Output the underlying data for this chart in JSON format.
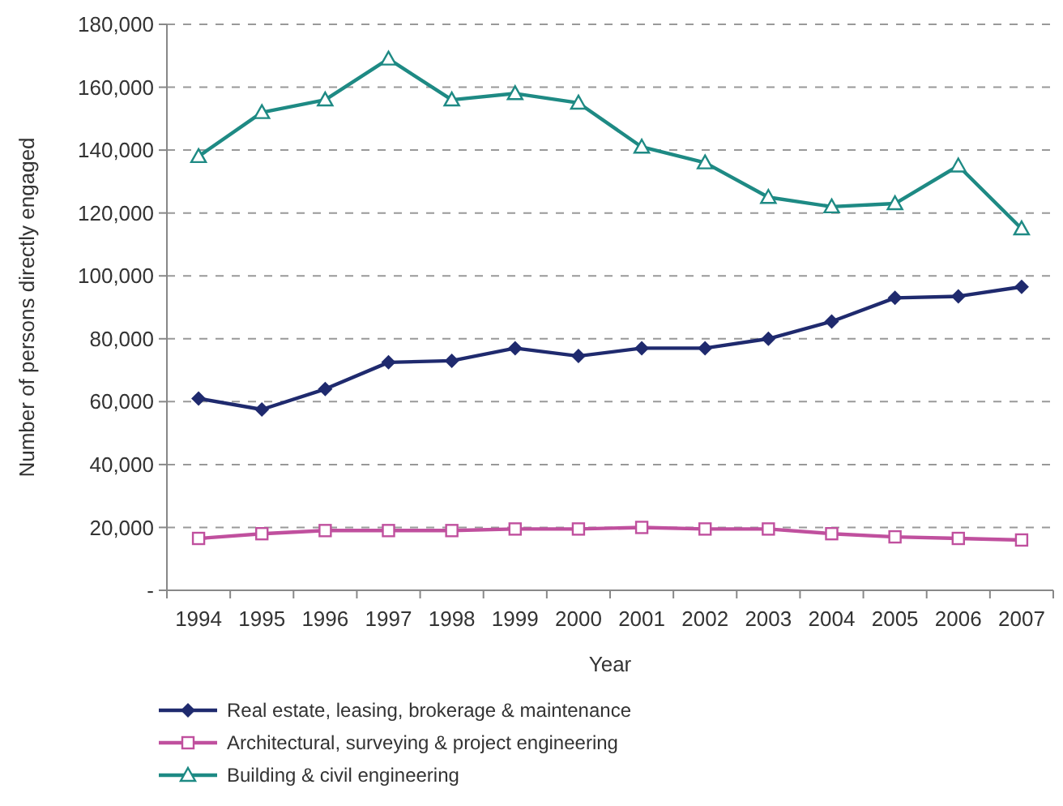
{
  "chart_data": {
    "type": "line",
    "xlabel": "Year",
    "ylabel": "Number of persons directly engaged",
    "categories": [
      "1994",
      "1995",
      "1996",
      "1997",
      "1998",
      "1999",
      "2000",
      "2001",
      "2002",
      "2003",
      "2004",
      "2005",
      "2006",
      "2007"
    ],
    "series": [
      {
        "name": "Real estate, leasing, brokerage & maintenance",
        "color": "#1f2a6e",
        "marker": "diamond",
        "values": [
          61000,
          57500,
          64000,
          72500,
          73000,
          77000,
          74500,
          77000,
          77000,
          80000,
          85500,
          93000,
          93500,
          96500
        ]
      },
      {
        "name": "Architectural, surveying & project engineering",
        "color": "#c0509e",
        "marker": "square",
        "values": [
          16500,
          18000,
          19000,
          19000,
          19000,
          19500,
          19500,
          20000,
          19500,
          19500,
          18000,
          17000,
          16500,
          16000
        ]
      },
      {
        "name": "Building & civil engineering",
        "color": "#1e8a84",
        "marker": "triangle",
        "values": [
          138000,
          152000,
          156000,
          169000,
          156000,
          158000,
          155000,
          141000,
          136000,
          125000,
          122000,
          123000,
          135000,
          115000
        ]
      }
    ],
    "ylim": [
      0,
      180000
    ],
    "yticks": [
      {
        "value": 0,
        "label": "-"
      },
      {
        "value": 20000,
        "label": "20,000"
      },
      {
        "value": 40000,
        "label": "40,000"
      },
      {
        "value": 60000,
        "label": "60,000"
      },
      {
        "value": 80000,
        "label": "80,000"
      },
      {
        "value": 100000,
        "label": "100,000"
      },
      {
        "value": 120000,
        "label": "120,000"
      },
      {
        "value": 140000,
        "label": "140,000"
      },
      {
        "value": 160000,
        "label": "160,000"
      },
      {
        "value": 180000,
        "label": "180,000"
      }
    ],
    "grid": "y",
    "legend": "bottom",
    "line_style": "solid"
  }
}
